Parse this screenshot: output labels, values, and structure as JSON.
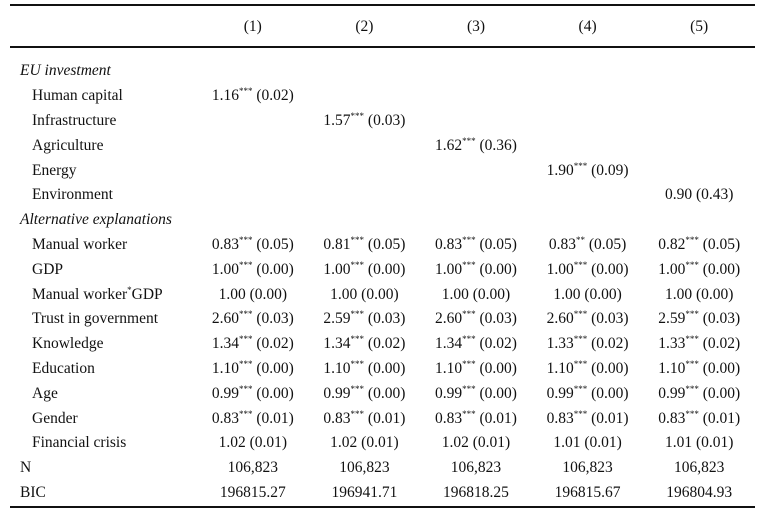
{
  "table": {
    "columns": [
      "",
      "(1)",
      "(2)",
      "(3)",
      "(4)",
      "(5)"
    ],
    "sections": [
      {
        "title": "EU investment",
        "rows": [
          {
            "label": "Human capital",
            "cells": [
              {
                "coef": "1.16",
                "stars": "***",
                "se": "(0.02)"
              },
              null,
              null,
              null,
              null
            ]
          },
          {
            "label": "Infrastructure",
            "cells": [
              null,
              {
                "coef": "1.57",
                "stars": "***",
                "se": "(0.03)"
              },
              null,
              null,
              null
            ]
          },
          {
            "label": "Agriculture",
            "cells": [
              null,
              null,
              {
                "coef": "1.62",
                "stars": "***",
                "se": "(0.36)"
              },
              null,
              null
            ]
          },
          {
            "label": "Energy",
            "cells": [
              null,
              null,
              null,
              {
                "coef": "1.90",
                "stars": "***",
                "se": "(0.09)"
              },
              null
            ]
          },
          {
            "label": "Environment",
            "cells": [
              null,
              null,
              null,
              null,
              {
                "coef": "0.90",
                "stars": "",
                "se": "(0.43)"
              }
            ]
          }
        ]
      },
      {
        "title": "Alternative explanations",
        "rows": [
          {
            "label": "Manual worker",
            "cells": [
              {
                "coef": "0.83",
                "stars": "***",
                "se": "(0.05)"
              },
              {
                "coef": "0.81",
                "stars": "***",
                "se": "(0.05)"
              },
              {
                "coef": "0.83",
                "stars": "***",
                "se": "(0.05)"
              },
              {
                "coef": "0.83",
                "stars": "**",
                "se": "(0.05)"
              },
              {
                "coef": "0.82",
                "stars": "***",
                "se": "(0.05)"
              }
            ]
          },
          {
            "label": "GDP",
            "cells": [
              {
                "coef": "1.00",
                "stars": "***",
                "se": "(0.00)"
              },
              {
                "coef": "1.00",
                "stars": "***",
                "se": "(0.00)"
              },
              {
                "coef": "1.00",
                "stars": "***",
                "se": "(0.00)"
              },
              {
                "coef": "1.00",
                "stars": "***",
                "se": "(0.00)"
              },
              {
                "coef": "1.00",
                "stars": "***",
                "se": "(0.00)"
              }
            ]
          },
          {
            "label": "Manual worker*GDP",
            "label_pre": "Manual worker",
            "label_sup": "*",
            "label_post": "GDP",
            "cells": [
              {
                "coef": "1.00",
                "stars": "",
                "se": "(0.00)"
              },
              {
                "coef": "1.00",
                "stars": "",
                "se": "(0.00)"
              },
              {
                "coef": "1.00",
                "stars": "",
                "se": "(0.00)"
              },
              {
                "coef": "1.00",
                "stars": "",
                "se": "(0.00)"
              },
              {
                "coef": "1.00",
                "stars": "",
                "se": "(0.00)"
              }
            ]
          },
          {
            "label": "Trust in government",
            "cells": [
              {
                "coef": "2.60",
                "stars": "***",
                "se": "(0.03)"
              },
              {
                "coef": "2.59",
                "stars": "***",
                "se": "(0.03)"
              },
              {
                "coef": "2.60",
                "stars": "***",
                "se": "(0.03)"
              },
              {
                "coef": "2.60",
                "stars": "***",
                "se": "(0.03)"
              },
              {
                "coef": "2.59",
                "stars": "***",
                "se": "(0.03)"
              }
            ]
          },
          {
            "label": "Knowledge",
            "cells": [
              {
                "coef": "1.34",
                "stars": "***",
                "se": "(0.02)"
              },
              {
                "coef": "1.34",
                "stars": "***",
                "se": "(0.02)"
              },
              {
                "coef": "1.34",
                "stars": "***",
                "se": "(0.02)"
              },
              {
                "coef": "1.33",
                "stars": "***",
                "se": "(0.02)"
              },
              {
                "coef": "1.33",
                "stars": "***",
                "se": "(0.02)"
              }
            ]
          },
          {
            "label": "Education",
            "cells": [
              {
                "coef": "1.10",
                "stars": "***",
                "se": "(0.00)"
              },
              {
                "coef": "1.10",
                "stars": "***",
                "se": "(0.00)"
              },
              {
                "coef": "1.10",
                "stars": "***",
                "se": "(0.00)"
              },
              {
                "coef": "1.10",
                "stars": "***",
                "se": "(0.00)"
              },
              {
                "coef": "1.10",
                "stars": "***",
                "se": "(0.00)"
              }
            ]
          },
          {
            "label": "Age",
            "cells": [
              {
                "coef": "0.99",
                "stars": "***",
                "se": "(0.00)"
              },
              {
                "coef": "0.99",
                "stars": "***",
                "se": "(0.00)"
              },
              {
                "coef": "0.99",
                "stars": "***",
                "se": "(0.00)"
              },
              {
                "coef": "0.99",
                "stars": "***",
                "se": "(0.00)"
              },
              {
                "coef": "0.99",
                "stars": "***",
                "se": "(0.00)"
              }
            ]
          },
          {
            "label": "Gender",
            "cells": [
              {
                "coef": "0.83",
                "stars": "***",
                "se": "(0.01)"
              },
              {
                "coef": "0.83",
                "stars": "***",
                "se": "(0.01)"
              },
              {
                "coef": "0.83",
                "stars": "***",
                "se": "(0.01)"
              },
              {
                "coef": "0.83",
                "stars": "***",
                "se": "(0.01)"
              },
              {
                "coef": "0.83",
                "stars": "***",
                "se": "(0.01)"
              }
            ]
          },
          {
            "label": "Financial crisis",
            "cells": [
              {
                "coef": "1.02",
                "stars": "",
                "se": "(0.01)"
              },
              {
                "coef": "1.02",
                "stars": "",
                "se": "(0.01)"
              },
              {
                "coef": "1.02",
                "stars": "",
                "se": "(0.01)"
              },
              {
                "coef": "1.01",
                "stars": "",
                "se": "(0.01)"
              },
              {
                "coef": "1.01",
                "stars": "",
                "se": "(0.01)"
              }
            ]
          }
        ]
      }
    ],
    "footer": [
      {
        "label": "N",
        "values": [
          "106,823",
          "106,823",
          "106,823",
          "106,823",
          "106,823"
        ]
      },
      {
        "label": "BIC",
        "values": [
          "196815.27",
          "196941.71",
          "196818.25",
          "196815.67",
          "196804.93"
        ]
      }
    ]
  }
}
